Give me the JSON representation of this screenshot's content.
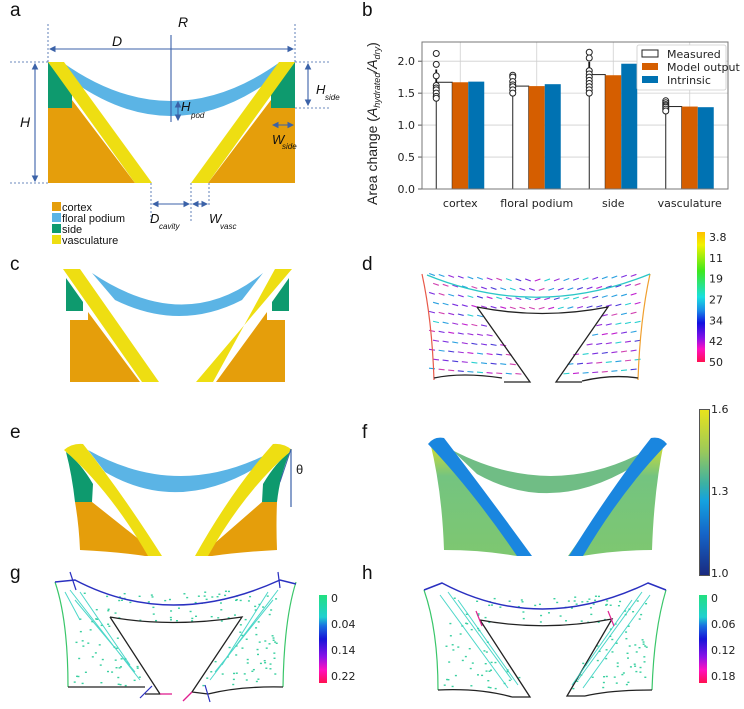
{
  "panels": {
    "a": {
      "label": "a",
      "dimension_labels": {
        "R": "R",
        "D": "D",
        "H": "H",
        "H_pod": "H",
        "H_pod_sub": "pod",
        "H_side": "H",
        "H_side_sub": "side",
        "W_side": "W",
        "W_side_sub": "side",
        "D_cavity": "D",
        "D_cavity_sub": "cavity",
        "W_vasc": "W",
        "W_vasc_sub": "vasc"
      },
      "legend": [
        {
          "name": "cortex",
          "color": "#E59E0B"
        },
        {
          "name": "floral podium",
          "color": "#5BB4E5"
        },
        {
          "name": "side",
          "color": "#0E9A6E"
        },
        {
          "name": "vasculature",
          "color": "#EEDE12"
        }
      ]
    },
    "b": {
      "label": "b"
    },
    "c": {
      "label": "c"
    },
    "d": {
      "label": "d",
      "colorbar": {
        "ticks": [
          "3.8",
          "11",
          "19",
          "27",
          "34",
          "42",
          "50"
        ]
      }
    },
    "e": {
      "label": "e",
      "angle_label": "θ"
    },
    "f": {
      "label": "f",
      "colorbar": {
        "ticks": [
          "1.6",
          "1.3",
          "1.0"
        ],
        "min": 1.0,
        "max": 1.6
      }
    },
    "g": {
      "label": "g",
      "colorbar": {
        "ticks": [
          "0",
          "0.04",
          "0.14",
          "0.22"
        ]
      }
    },
    "h": {
      "label": "h",
      "colorbar": {
        "ticks": [
          "0",
          "0.06",
          "0.12",
          "0.18"
        ]
      }
    }
  },
  "colors": {
    "cortex": "#E59E0B",
    "podium": "#5BB4E5",
    "side": "#0E9A6E",
    "vasculature": "#EEDE12",
    "measured_edge": "#222222",
    "model_output": "#D55E00",
    "intrinsic": "#0072B2"
  },
  "chart_data": {
    "type": "bar",
    "title": "",
    "xlabel": "",
    "ylabel": "Area change (A_hydrated / A_dry)",
    "ylabel_parts": {
      "prefix": "Area change (",
      "A1": "A",
      "sub1": "hydrated",
      "slash": "/",
      "A2": "A",
      "sub2": "dry",
      "suffix": ")"
    },
    "ylim": [
      0,
      2.3
    ],
    "yticks": [
      0.0,
      0.5,
      1.0,
      1.5,
      2.0
    ],
    "ytick_labels": [
      "0.0",
      "0.5",
      "1.0",
      "1.5",
      "2.0"
    ],
    "grid": true,
    "legend_position": "top-right",
    "categories": [
      "cortex",
      "floral podium",
      "side",
      "vasculature"
    ],
    "series": [
      {
        "name": "Measured",
        "values": [
          1.67,
          1.61,
          1.79,
          1.29
        ],
        "error": [
          0.2,
          0.1,
          0.2,
          0.05
        ],
        "points": [
          [
            2.12,
            1.95,
            1.77,
            1.62,
            1.58,
            1.55,
            1.5,
            1.45,
            1.42
          ],
          [
            1.78,
            1.75,
            1.68,
            1.63,
            1.6,
            1.55,
            1.5
          ],
          [
            2.14,
            2.05,
            1.85,
            1.8,
            1.75,
            1.7,
            1.65,
            1.6,
            1.55,
            1.5
          ],
          [
            1.38,
            1.35,
            1.32,
            1.3,
            1.28,
            1.25,
            1.22
          ]
        ]
      },
      {
        "name": "Model output",
        "values": [
          1.67,
          1.61,
          1.78,
          1.29
        ]
      },
      {
        "name": "Intrinsic",
        "values": [
          1.68,
          1.64,
          1.96,
          1.28
        ]
      }
    ]
  }
}
